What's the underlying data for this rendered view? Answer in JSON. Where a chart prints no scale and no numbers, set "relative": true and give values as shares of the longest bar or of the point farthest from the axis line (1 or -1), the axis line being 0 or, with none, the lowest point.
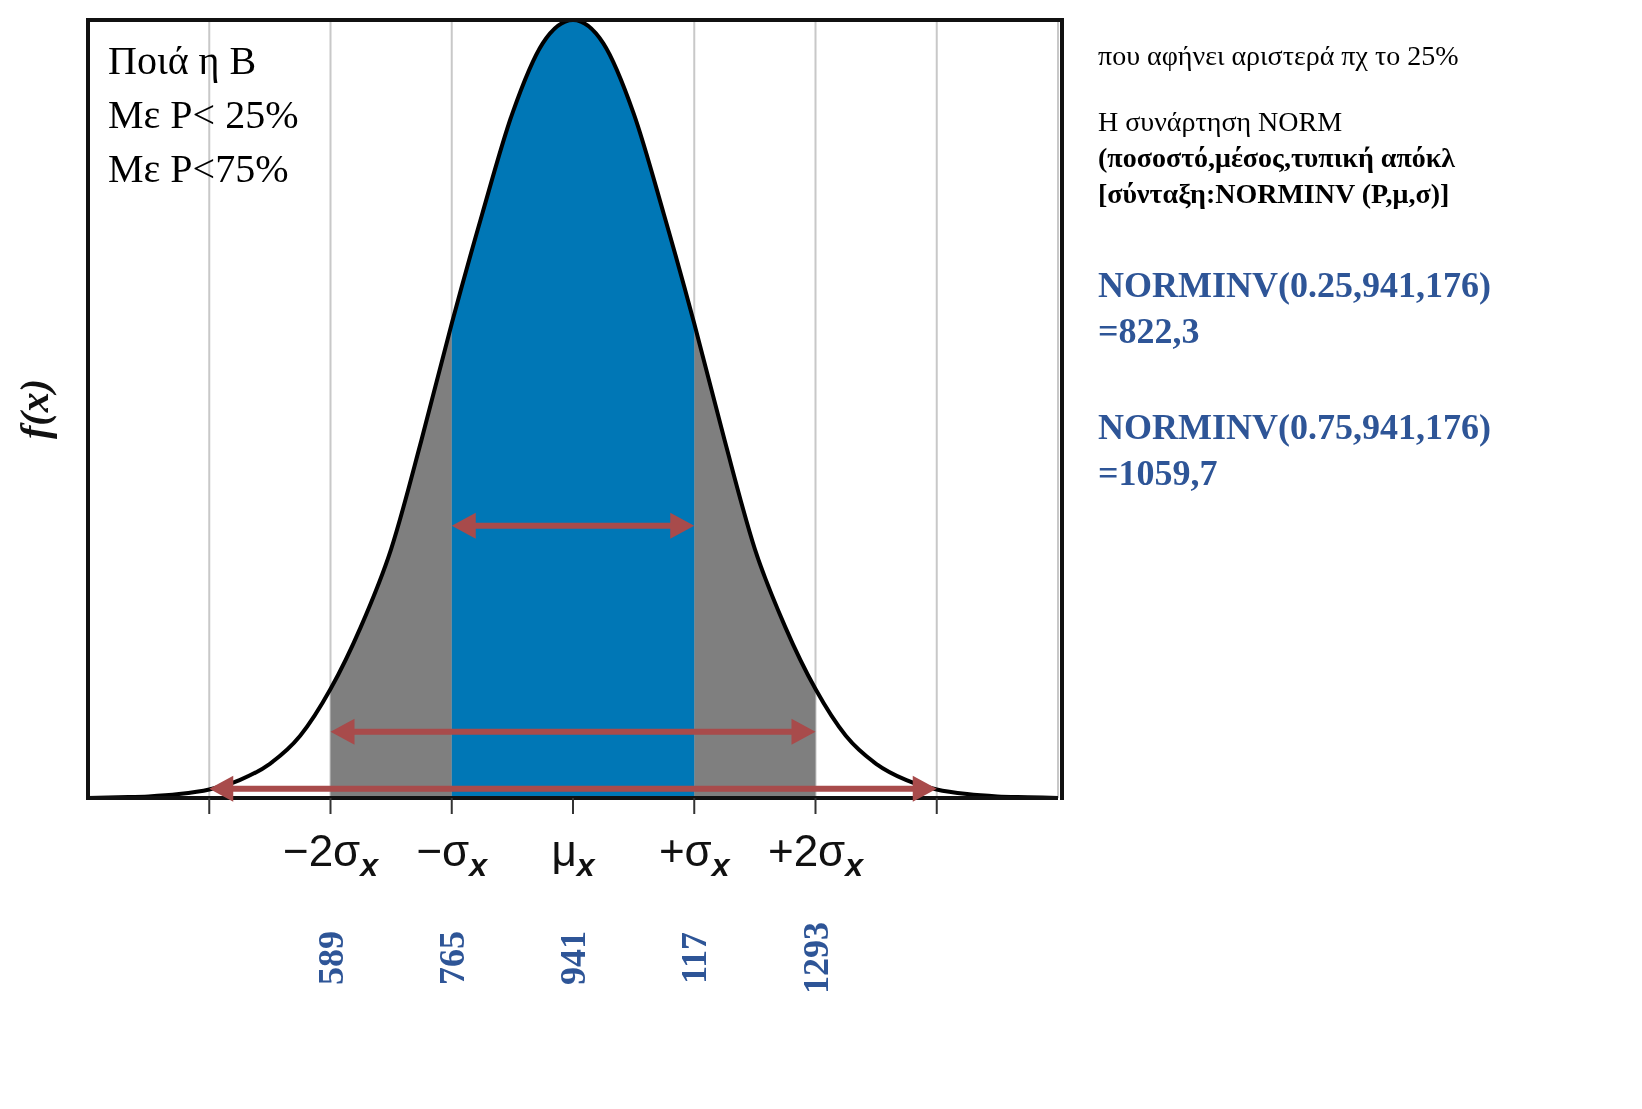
{
  "chart_data": {
    "type": "area",
    "relative": true,
    "ylabel": "f(x)",
    "categories": [
      null,
      null,
      null,
      null,
      null,
      null,
      null,
      null,
      "−2σ$_{x}$",
      null,
      null,
      null,
      "−σ$_{x}$",
      null,
      null,
      null,
      "μ$_{x}$",
      null,
      null,
      null,
      "+σ$_{x}$",
      null,
      null,
      null,
      "+2σ$_{x}$",
      null,
      null,
      null,
      null,
      null,
      null,
      null,
      null
    ],
    "grid": "x",
    "marker": "none",
    "series": [
      {
        "type": "area",
        "color": "#7f7f7f",
        "values": [
          null,
          null,
          null,
          null,
          null,
          null,
          null,
          null,
          0.14,
          0.22,
          0.32,
          0.46,
          0.61,
          null,
          null,
          null,
          null,
          null,
          null,
          null,
          0.61,
          0.46,
          0.32,
          0.22,
          0.14,
          null,
          null,
          null,
          null,
          null,
          null,
          null,
          null
        ]
      },
      {
        "type": "area",
        "color": "#0077b6",
        "values": [
          null,
          null,
          null,
          null,
          null,
          null,
          null,
          null,
          null,
          null,
          null,
          null,
          0.61,
          0.75,
          0.88,
          0.97,
          1,
          0.97,
          0.88,
          0.75,
          0.61,
          null,
          null,
          null,
          null,
          null,
          null,
          null,
          null,
          null,
          null,
          null,
          null
        ]
      },
      {
        "type": "line",
        "color": "#000000",
        "values": [
          0,
          0.001,
          0.002,
          0.005,
          0.011,
          0.023,
          0.044,
          0.08,
          0.14,
          0.22,
          0.32,
          0.46,
          0.61,
          0.75,
          0.88,
          0.97,
          1,
          0.97,
          0.88,
          0.75,
          0.61,
          0.46,
          0.32,
          0.22,
          0.14,
          0.08,
          0.044,
          0.023,
          0.011,
          0.005,
          0.002,
          0.001,
          0
        ]
      }
    ],
    "annotations": [
      "Ποιά η  Β",
      "Με  P< 25%",
      "Με  P<75%",
      "που αφήνει αριστερά πχ το 25%",
      "Η συνάρτηση NORM",
      "(ποσοστό,μέσος,τυπική απόκλ",
      "[σύνταξη:NORMINV (P,μ,σ)]",
      "NORMINV(0.25,941,176)",
      "=822,3",
      "NORMINV(0.75,941,176)",
      "=1059,7",
      "589",
      "765",
      "941",
      "117",
      "1293"
    ]
  }
}
